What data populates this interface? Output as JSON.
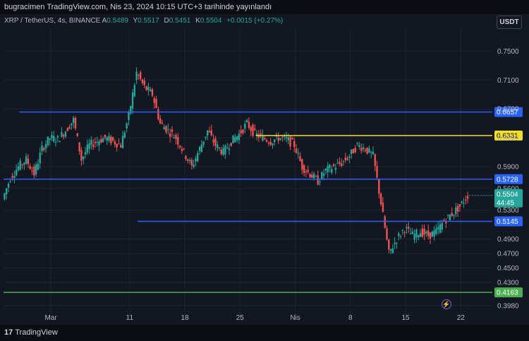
{
  "header": {
    "published_by": "bugracimen TradingView.com, Nis 23, 2024 10:15 UTC+3 tarihinde yayınlandı"
  },
  "legend": {
    "symbol": "XRP / TetherUS, 4s, BINANCE",
    "open_label": "A",
    "open_value": "0.5489",
    "high_label": "Y",
    "high_value": "0.5517",
    "low_label": "D",
    "low_value": "0.5451",
    "close_label": "K",
    "close_value": "0.5504",
    "change": "+0.0015 (+0.27%)"
  },
  "currency_button": "USDT",
  "footer": {
    "logo_text": "TradingView"
  },
  "colors": {
    "up": "#26a69a",
    "down": "#ef5350",
    "blue_line": "#2962ff",
    "yellow_line": "#f5e11c",
    "green_line": "#4caf50",
    "background": "#131722"
  },
  "icons": {
    "logo": "tradingview-logo-icon",
    "bolt": "lightning-icon"
  },
  "chart_data": {
    "type": "candlestick",
    "y_axis": {
      "ticks": [
        "0.7500",
        "0.7100",
        "0.6700",
        "0.6300",
        "0.5900",
        "0.5600",
        "0.5300",
        "0.4900",
        "0.4700",
        "0.4500",
        "0.4300",
        "0.3980"
      ],
      "range": [
        0.391,
        0.762
      ],
      "scale": "linear"
    },
    "x_axis": {
      "ticks": [
        "Mar",
        "11",
        "18",
        "25",
        "Nis",
        "8",
        "15",
        "22"
      ]
    },
    "current_price": {
      "value": "0.5504",
      "countdown": "44:45"
    },
    "levels": [
      {
        "value": 0.6657,
        "label": "0.6657",
        "color": "#2962ff",
        "from": "2024-02-26"
      },
      {
        "value": 0.6331,
        "label": "0.6331",
        "color": "#f5e11c",
        "from": "2024-03-27"
      },
      {
        "value": 0.5728,
        "label": "0.5728",
        "color": "#2962ff",
        "from": "2024-02-24"
      },
      {
        "value": 0.5145,
        "label": "0.5145",
        "color": "#2962ff",
        "from": "2024-03-12"
      },
      {
        "value": 0.4163,
        "label": "0.4163",
        "color": "#4caf50",
        "from": "2024-02-24"
      }
    ],
    "series": [
      [
        "2024-02-24",
        0.545
      ],
      [
        "2024-02-25",
        0.575
      ],
      [
        "2024-02-26",
        0.59
      ],
      [
        "2024-02-27",
        0.6
      ],
      [
        "2024-02-28",
        0.58
      ],
      [
        "2024-02-29",
        0.615
      ],
      [
        "2024-03-01",
        0.63
      ],
      [
        "2024-03-02",
        0.628
      ],
      [
        "2024-03-03",
        0.64
      ],
      [
        "2024-03-04",
        0.655
      ],
      [
        "2024-03-05",
        0.6
      ],
      [
        "2024-03-06",
        0.62
      ],
      [
        "2024-03-07",
        0.625
      ],
      [
        "2024-03-08",
        0.63
      ],
      [
        "2024-03-09",
        0.625
      ],
      [
        "2024-03-10",
        0.62
      ],
      [
        "2024-03-11",
        0.66
      ],
      [
        "2024-03-12",
        0.72
      ],
      [
        "2024-03-13",
        0.7
      ],
      [
        "2024-03-14",
        0.69
      ],
      [
        "2024-03-15",
        0.65
      ],
      [
        "2024-03-16",
        0.64
      ],
      [
        "2024-03-17",
        0.63
      ],
      [
        "2024-03-18",
        0.61
      ],
      [
        "2024-03-19",
        0.59
      ],
      [
        "2024-03-20",
        0.615
      ],
      [
        "2024-03-21",
        0.64
      ],
      [
        "2024-03-22",
        0.62
      ],
      [
        "2024-03-23",
        0.61
      ],
      [
        "2024-03-24",
        0.625
      ],
      [
        "2024-03-25",
        0.635
      ],
      [
        "2024-03-26",
        0.65
      ],
      [
        "2024-03-27",
        0.635
      ],
      [
        "2024-03-28",
        0.63
      ],
      [
        "2024-03-29",
        0.625
      ],
      [
        "2024-03-30",
        0.63
      ],
      [
        "2024-03-31",
        0.628
      ],
      [
        "2024-04-01",
        0.62
      ],
      [
        "2024-04-02",
        0.59
      ],
      [
        "2024-04-03",
        0.58
      ],
      [
        "2024-04-04",
        0.57
      ],
      [
        "2024-04-05",
        0.585
      ],
      [
        "2024-04-06",
        0.59
      ],
      [
        "2024-04-07",
        0.595
      ],
      [
        "2024-04-08",
        0.605
      ],
      [
        "2024-04-09",
        0.62
      ],
      [
        "2024-04-10",
        0.615
      ],
      [
        "2024-04-11",
        0.605
      ],
      [
        "2024-04-12",
        0.54
      ],
      [
        "2024-04-13",
        0.47
      ],
      [
        "2024-04-14",
        0.49
      ],
      [
        "2024-04-15",
        0.505
      ],
      [
        "2024-04-16",
        0.495
      ],
      [
        "2024-04-17",
        0.5
      ],
      [
        "2024-04-18",
        0.495
      ],
      [
        "2024-04-19",
        0.5
      ],
      [
        "2024-04-20",
        0.515
      ],
      [
        "2024-04-21",
        0.525
      ],
      [
        "2024-04-22",
        0.535
      ],
      [
        "2024-04-23",
        0.5504
      ]
    ]
  }
}
